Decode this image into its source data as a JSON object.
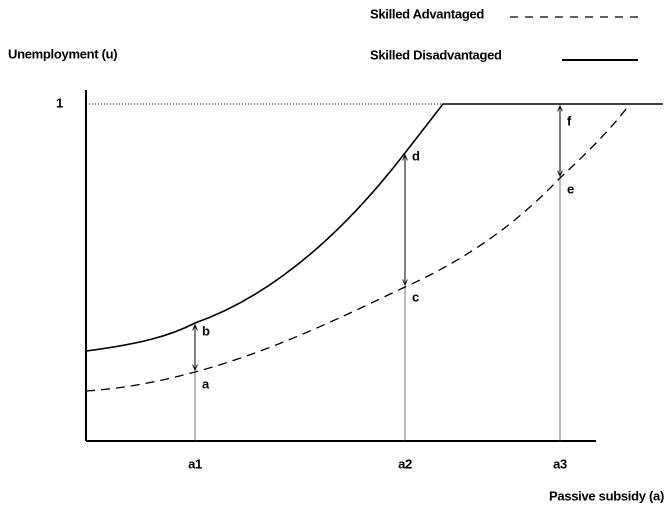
{
  "legend": [
    "Skilled Advantaged",
    "Skilled Disadvantaged"
  ],
  "y_axis": {
    "label": "Unemployment (u)",
    "tick": "1"
  },
  "x_axis": {
    "label": "Passive subsidy (a)",
    "ticks": [
      "a1",
      "a2",
      "a3"
    ]
  },
  "points": [
    "a",
    "b",
    "c",
    "d",
    "e",
    "f"
  ]
}
